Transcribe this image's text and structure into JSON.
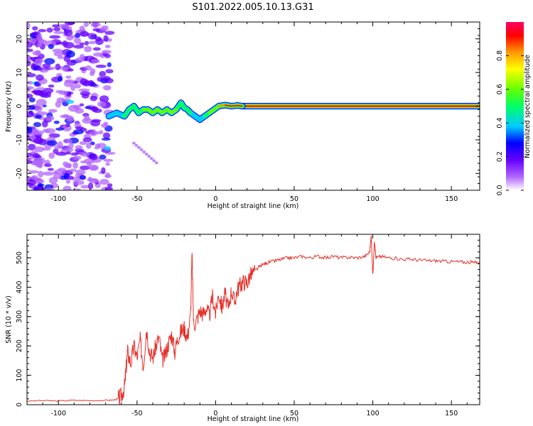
{
  "figure": {
    "title": "S101.2022.005.10.13.G31"
  },
  "chart_data": [
    {
      "type": "heatmap",
      "xlabel": "Height of straight line (km)",
      "ylabel": "Frequency (Hz)",
      "xlim": [
        -120,
        168
      ],
      "ylim": [
        -25,
        25
      ],
      "xticks": [
        -100,
        -50,
        0,
        50,
        100,
        150
      ],
      "yticks": [
        -20,
        -10,
        0,
        10,
        20
      ],
      "colorbar": {
        "label": "Normalized spectral amplitude",
        "range": [
          0,
          1
        ],
        "ticks": [
          "0.0",
          "0.2",
          "0.4",
          "0.6",
          "0.8"
        ],
        "colormap": "rainbow-white",
        "colors": [
          "#ffffff",
          "#b266ff",
          "#6600ff",
          "#0000ff",
          "#00ccff",
          "#00ff66",
          "#66ff00",
          "#ffff00",
          "#ff9900",
          "#ff0000",
          "#ff0066"
        ]
      },
      "noise_region_x": [
        -120,
        -67
      ],
      "ridge": {
        "x": [
          -68,
          -63,
          -58,
          -55,
          -52,
          -49,
          -46,
          -43,
          -40,
          -37,
          -34,
          -31,
          -28,
          -25,
          -22,
          -20,
          -18,
          -16,
          -13,
          -10,
          -7,
          -4,
          -1,
          2,
          6,
          10,
          14,
          17
        ],
        "freq": [
          -3,
          -2,
          -3,
          -1,
          0,
          -2,
          -1,
          -1,
          -2,
          -1,
          -2,
          -1,
          -2,
          -1,
          1,
          -0.5,
          -1,
          -2,
          -3,
          -4,
          -3,
          -2,
          -1,
          0,
          0.3,
          0,
          0.2,
          0
        ],
        "amp": [
          0.3,
          0.35,
          0.4,
          0.45,
          0.5,
          0.45,
          0.55,
          0.5,
          0.55,
          0.5,
          0.55,
          0.6,
          0.55,
          0.5,
          0.45,
          0.5,
          0.45,
          0.4,
          0.35,
          0.35,
          0.4,
          0.5,
          0.6,
          0.7,
          0.85,
          0.9,
          0.9,
          0.95
        ]
      },
      "steady_line": {
        "x": [
          17,
          168
        ],
        "freq": 0,
        "amp": 0.95
      }
    },
    {
      "type": "line",
      "xlabel": "Height of straight line (km)",
      "ylabel": "SNR (10 * v/v)",
      "xlim": [
        -120,
        168
      ],
      "ylim": [
        0,
        580
      ],
      "xticks": [
        -100,
        -50,
        0,
        50,
        100,
        150
      ],
      "yticks": [
        0,
        100,
        200,
        300,
        400,
        500
      ],
      "series": [
        {
          "color": "#e8302a",
          "x": [
            -120,
            -110,
            -100,
            -90,
            -80,
            -70,
            -65,
            -62,
            -60,
            -58,
            -57,
            -56,
            -54,
            -52,
            -50,
            -48,
            -46,
            -44,
            -42,
            -40,
            -38,
            -36,
            -34,
            -32,
            -30,
            -28,
            -26,
            -24,
            -22,
            -20,
            -18,
            -16,
            -15,
            -14,
            -12,
            -10,
            -8,
            -6,
            -4,
            -2,
            0,
            2,
            4,
            6,
            8,
            10,
            12,
            14,
            16,
            18,
            20,
            22,
            25,
            28,
            31,
            34,
            38,
            42,
            46,
            50,
            55,
            60,
            65,
            70,
            75,
            80,
            85,
            90,
            95,
            98,
            99,
            100,
            101,
            102,
            105,
            110,
            115,
            120,
            125,
            130,
            135,
            140,
            145,
            150,
            155,
            160,
            165,
            168
          ],
          "y": [
            12,
            14,
            13,
            15,
            14,
            15,
            16,
            20,
            30,
            60,
            120,
            180,
            140,
            200,
            160,
            220,
            130,
            260,
            180,
            160,
            200,
            230,
            150,
            170,
            210,
            240,
            180,
            230,
            250,
            260,
            230,
            300,
            510,
            270,
            290,
            320,
            310,
            330,
            300,
            370,
            310,
            380,
            330,
            380,
            320,
            390,
            350,
            395,
            410,
            420,
            415,
            440,
            455,
            470,
            480,
            485,
            490,
            495,
            500,
            500,
            505,
            500,
            505,
            500,
            505,
            500,
            502,
            500,
            505,
            520,
            575,
            440,
            560,
            500,
            505,
            500,
            498,
            495,
            495,
            492,
            490,
            490,
            488,
            487,
            486,
            485,
            484,
            484
          ]
        }
      ]
    }
  ]
}
